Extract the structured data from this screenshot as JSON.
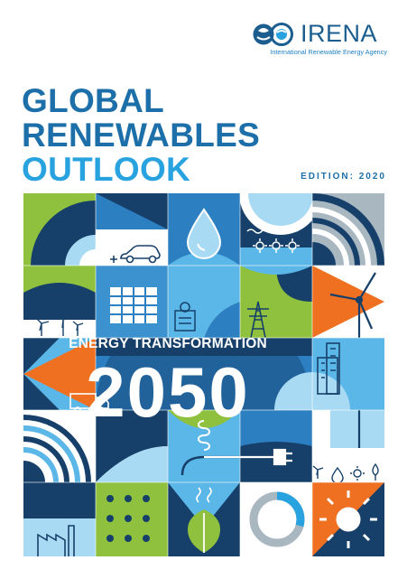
{
  "publisher": {
    "name": "IRENA",
    "full_name": "International Renewable Energy Agency",
    "colors": {
      "word": "#1b5d8e",
      "sub": "#1b7fc4"
    }
  },
  "cover": {
    "title_lines": [
      "GLOBAL",
      "RENEWABLES",
      "OUTLOOK"
    ],
    "edition_label": "EDITION: 2020",
    "banner_title": "ENERGY TRANSFORMATION",
    "banner_year": "2050",
    "colors": {
      "title_dark": "#1c6fa8",
      "title_light": "#29a3e0",
      "navy": "#16406a",
      "blue": "#2c7fc1",
      "sky": "#5bb7e8",
      "pale": "#a9daf4",
      "green": "#8fc13e",
      "orange": "#f07022",
      "grey": "#a9b7c1"
    },
    "icons": [
      "car-icon",
      "solar-panel-icon",
      "water-drop-icon",
      "sun-waves-icon",
      "wind-turbine-icon",
      "power-pylon-icon",
      "factory-icon",
      "truck-icon",
      "building-icon",
      "plug-icon",
      "leaf-icon",
      "donut-chart-icon",
      "sun-icon"
    ]
  }
}
